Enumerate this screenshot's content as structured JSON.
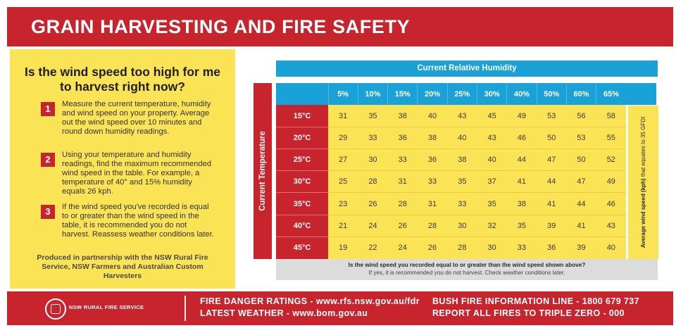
{
  "header": {
    "title": "GRAIN HARVESTING AND FIRE SAFETY"
  },
  "left": {
    "question": "Is the wind speed too high for me to harvest right now?",
    "steps": [
      {
        "num": "1",
        "text": "Measure the current temperature, humidity and wind speed on your property. Average out the wind speed over 10 minutes and round down humidity readings."
      },
      {
        "num": "2",
        "text": "Using your temperature and humidity readings, find the maximum recommended wind speed in the table. For example, a temperature of 40° and 15% humidity equals 26 kph."
      },
      {
        "num": "3",
        "text": "If the wind speed you've recorded is equal to or greater than the wind speed in the table, it is recommended you do not harvest. Reassess weather conditions later."
      }
    ],
    "partners": "Produced in partnership with the NSW Rural Fire Service, NSW Farmers and Australian Custom Harvesters"
  },
  "table": {
    "humidity_title": "Current Relative Humidity",
    "temperature_title": "Current Temperature",
    "humidity": [
      "5%",
      "10%",
      "15%",
      "20%",
      "25%",
      "30%",
      "40%",
      "50%",
      "60%",
      "65%"
    ],
    "temperatures": [
      "15°C",
      "20°C",
      "25°C",
      "30°C",
      "35°C",
      "40°C",
      "45°C"
    ],
    "values": [
      [
        "31",
        "35",
        "38",
        "40",
        "43",
        "45",
        "49",
        "53",
        "56",
        "58"
      ],
      [
        "29",
        "33",
        "36",
        "38",
        "40",
        "43",
        "46",
        "50",
        "53",
        "55"
      ],
      [
        "27",
        "30",
        "33",
        "36",
        "38",
        "40",
        "44",
        "47",
        "50",
        "52"
      ],
      [
        "25",
        "28",
        "31",
        "33",
        "35",
        "37",
        "41",
        "44",
        "47",
        "49"
      ],
      [
        "23",
        "26",
        "28",
        "31",
        "33",
        "35",
        "38",
        "41",
        "44",
        "46"
      ],
      [
        "21",
        "24",
        "26",
        "28",
        "30",
        "32",
        "35",
        "39",
        "41",
        "43"
      ],
      [
        "19",
        "22",
        "24",
        "26",
        "28",
        "30",
        "33",
        "36",
        "39",
        "40"
      ]
    ],
    "side_note_bold": "Average wind speed (kph)",
    "side_note_rest": "that equates to 35 GFDI",
    "question_line": "Is the wind speed you recorded equal to or greater than the wind speed shown above?",
    "answer_line": "If yes, it is recommended you do not harvest. Check weather conditions later."
  },
  "footer": {
    "org": "NSW RURAL FIRE SERVICE",
    "line1": "FIRE DANGER RATINGS - www.rfs.nsw.gov.au/fdr",
    "line2": "LATEST WEATHER - www.bom.gov.au",
    "line3": "BUSH FIRE INFORMATION LINE - 1800 679 737",
    "line4": "REPORT ALL FIRES TO TRIPLE ZERO - 000"
  },
  "colors": {
    "red": "#c8242d",
    "yellow": "#fbe356",
    "blue": "#1aa1d8",
    "grey": "#dcdcdc"
  }
}
